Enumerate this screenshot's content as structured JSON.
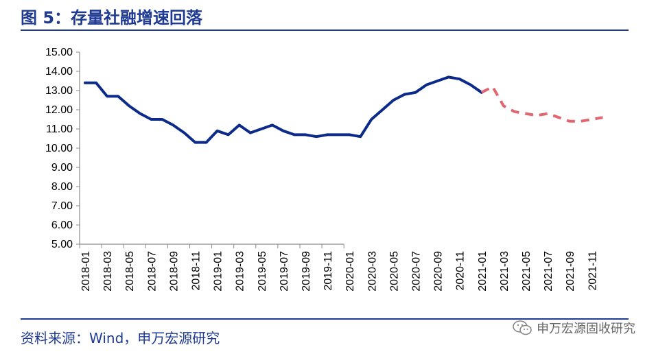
{
  "title": "图 5：存量社融增速回落",
  "source": "资料来源：Wind，申万宏源研究",
  "watermark": "申万宏源固收研究",
  "colors": {
    "brand": "#1f3a93",
    "actual": "#0b2a8a",
    "forecast": "#e06670"
  },
  "chart_data": {
    "type": "line",
    "title": "",
    "xlabel": "",
    "ylabel": "",
    "ylim": [
      5,
      15
    ],
    "yticks": [
      "5.00",
      "6.00",
      "7.00",
      "8.00",
      "9.00",
      "10.00",
      "11.00",
      "12.00",
      "13.00",
      "14.00",
      "15.00"
    ],
    "xticks": [
      "2018-01",
      "2018-03",
      "2018-05",
      "2018-07",
      "2018-09",
      "2018-11",
      "2019-01",
      "2019-03",
      "2019-05",
      "2019-07",
      "2019-09",
      "2019-11",
      "2020-01",
      "2020-03",
      "2020-05",
      "2020-07",
      "2020-09",
      "2020-11",
      "2021-01",
      "2021-03",
      "2021-05",
      "2021-07",
      "2021-09",
      "2021-11"
    ],
    "grid": false,
    "series": [
      {
        "style": "solid",
        "color": "#0b2a8a",
        "x": [
          "2018-01",
          "2018-02",
          "2018-03",
          "2018-04",
          "2018-05",
          "2018-06",
          "2018-07",
          "2018-08",
          "2018-09",
          "2018-10",
          "2018-11",
          "2018-12",
          "2019-01",
          "2019-02",
          "2019-03",
          "2019-04",
          "2019-05",
          "2019-06",
          "2019-07",
          "2019-08",
          "2019-09",
          "2019-10",
          "2019-11",
          "2019-12",
          "2020-01",
          "2020-02",
          "2020-03",
          "2020-04",
          "2020-05",
          "2020-06",
          "2020-07",
          "2020-08",
          "2020-09",
          "2020-10",
          "2020-11",
          "2020-12",
          "2021-01"
        ],
        "values": [
          13.4,
          13.4,
          12.7,
          12.7,
          12.2,
          11.8,
          11.5,
          11.5,
          11.2,
          10.8,
          10.3,
          10.3,
          10.9,
          10.7,
          11.2,
          10.8,
          11.0,
          11.2,
          10.9,
          10.7,
          10.7,
          10.6,
          10.7,
          10.7,
          10.7,
          10.6,
          11.5,
          12.0,
          12.5,
          12.8,
          12.9,
          13.3,
          13.5,
          13.7,
          13.6,
          13.3,
          12.9
        ]
      },
      {
        "style": "dashed",
        "color": "#e06670",
        "x": [
          "2021-01",
          "2021-02",
          "2021-03",
          "2021-04",
          "2021-05",
          "2021-06",
          "2021-07",
          "2021-08",
          "2021-09",
          "2021-10",
          "2021-11",
          "2021-12"
        ],
        "values": [
          12.9,
          13.2,
          12.2,
          11.9,
          11.8,
          11.7,
          11.8,
          11.6,
          11.4,
          11.4,
          11.5,
          11.6
        ]
      }
    ]
  }
}
